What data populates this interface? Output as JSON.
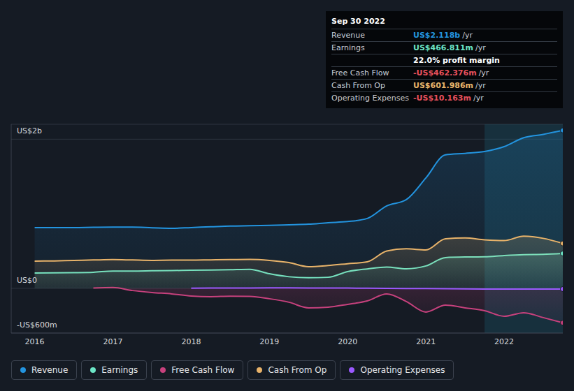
{
  "chart_data": {
    "type": "area",
    "x": [
      2016,
      2016.25,
      2016.5,
      2016.75,
      2017,
      2017.25,
      2017.5,
      2017.75,
      2018,
      2018.25,
      2018.5,
      2018.75,
      2019,
      2019.25,
      2019.5,
      2019.75,
      2020,
      2020.25,
      2020.5,
      2020.75,
      2021,
      2021.25,
      2021.5,
      2021.75,
      2022,
      2022.25,
      2022.5,
      2022.75
    ],
    "xlim": [
      2015.7,
      2022.75
    ],
    "xticks": [
      2016,
      2017,
      2018,
      2019,
      2020,
      2021,
      2022
    ],
    "ylim": [
      -600,
      2200
    ],
    "yticks": [
      {
        "value": -600,
        "label": "-US$600m"
      },
      {
        "value": 0,
        "label": "US$0"
      },
      {
        "value": 2000,
        "label": "US$2b"
      }
    ],
    "grid": true,
    "shaded_range": [
      2021.75,
      2022.75
    ],
    "series": [
      {
        "name": "Revenue",
        "color": "#2394df",
        "values": [
          815,
          815,
          815,
          818,
          820,
          820,
          812,
          805,
          815,
          825,
          835,
          840,
          845,
          852,
          860,
          880,
          895,
          937,
          1106,
          1190,
          1480,
          1790,
          1810,
          1835,
          1900,
          2020,
          2065,
          2118
        ]
      },
      {
        "name": "Earnings",
        "color": "#6ce5c6",
        "values": [
          206,
          208,
          210,
          215,
          232,
          232,
          235,
          238,
          242,
          245,
          250,
          255,
          195,
          155,
          142,
          148,
          225,
          260,
          285,
          262,
          300,
          412,
          420,
          422,
          440,
          452,
          455,
          467
        ]
      },
      {
        "name": "Free Cash Flow",
        "color": "#c7417d",
        "values": [
          null,
          null,
          null,
          5,
          10,
          -30,
          -56,
          -75,
          -103,
          -112,
          -105,
          -108,
          -140,
          -187,
          -262,
          -253,
          -215,
          -169,
          -75,
          -178,
          -318,
          -225,
          -262,
          -300,
          -375,
          -328,
          -393,
          -462
        ]
      },
      {
        "name": "Cash From Op",
        "color": "#e8b36a",
        "values": [
          365,
          368,
          375,
          380,
          385,
          380,
          375,
          378,
          378,
          382,
          385,
          388,
          375,
          345,
          290,
          305,
          330,
          355,
          500,
          530,
          515,
          665,
          675,
          650,
          640,
          700,
          670,
          602
        ]
      },
      {
        "name": "Operating Expenses",
        "color": "#9b59ff",
        "type": "line",
        "values": [
          null,
          null,
          null,
          null,
          null,
          null,
          null,
          null,
          2,
          3,
          4,
          5,
          6,
          6,
          5,
          4,
          3,
          2,
          0,
          -2,
          -4,
          -6,
          -8,
          -9,
          -10,
          -10,
          -10,
          -10
        ]
      }
    ]
  },
  "info_box": {
    "title": "Sep 30 2022",
    "rows": [
      {
        "label": "Revenue",
        "value": "US$2.118b",
        "unit": "/yr"
      },
      {
        "label": "Earnings",
        "value": "US$466.811m",
        "unit": "/yr"
      },
      {
        "value": "22.0% profit margin"
      },
      {
        "label": "Free Cash Flow",
        "value": "-US$462.376m",
        "unit": "/yr"
      },
      {
        "label": "Cash From Op",
        "value": "US$601.986m",
        "unit": "/yr"
      },
      {
        "label": "Operating Expenses",
        "value": "-US$10.163m",
        "unit": "/yr"
      }
    ]
  }
}
